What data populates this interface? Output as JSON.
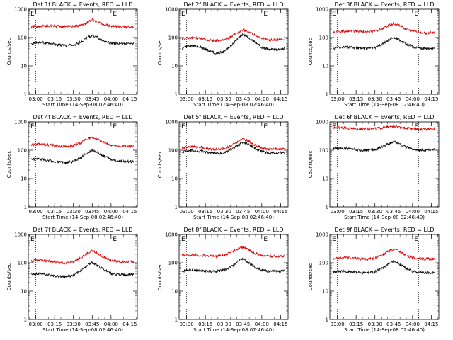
{
  "figure": {
    "colors": {
      "events": "#000000",
      "lld": "#dd0000",
      "axes": "#000000",
      "marker": "#000000"
    }
  },
  "chart_data": [
    {
      "type": "line",
      "title": "Det 1f BLACK = Events, RED = LLD",
      "xlabel": "Start Time (14-Sep-08 02:46:40)",
      "ylabel": "Counts/sec",
      "xlim": [
        2.9,
        4.35
      ],
      "ylim": [
        1,
        1000
      ],
      "yscale": "log",
      "xticks": [
        "03:00",
        "03:15",
        "03:30",
        "03:45",
        "04:00",
        "04:15"
      ],
      "yticks": [
        "1",
        "10",
        "100",
        "1000"
      ],
      "x_hours": [
        2.94,
        3.0,
        3.1,
        3.2,
        3.3,
        3.4,
        3.5,
        3.6,
        3.7,
        3.75,
        3.8,
        3.9,
        4.0,
        4.1,
        4.2,
        4.3
      ],
      "series": [
        {
          "values": [
            60,
            68,
            66,
            60,
            55,
            52,
            55,
            68,
            105,
            120,
            108,
            75,
            62,
            60,
            60,
            62
          ]
        },
        {
          "values": [
            240,
            250,
            255,
            255,
            250,
            245,
            250,
            270,
            360,
            430,
            380,
            290,
            255,
            240,
            235,
            240
          ]
        }
      ],
      "markers": [
        {
          "x": 3.0,
          "label": "E"
        },
        {
          "x": 4.08,
          "label": "E"
        }
      ]
    },
    {
      "type": "line",
      "title": "Det 2f BLACK = Events, RED = LLD",
      "xlabel": "Start Time (14-Sep-08 02:46:40)",
      "ylabel": "Counts/sec",
      "xlim": [
        2.9,
        4.35
      ],
      "ylim": [
        1,
        1000
      ],
      "yscale": "log",
      "xticks": [
        "03:00",
        "03:15",
        "03:30",
        "03:45",
        "04:00",
        "04:15"
      ],
      "yticks": [
        "1",
        "10",
        "100",
        "1000"
      ],
      "x_hours": [
        2.94,
        3.0,
        3.1,
        3.2,
        3.3,
        3.4,
        3.5,
        3.6,
        3.7,
        3.75,
        3.8,
        3.9,
        4.0,
        4.1,
        4.2,
        4.3
      ],
      "series": [
        {
          "values": [
            42,
            48,
            50,
            46,
            34,
            28,
            32,
            55,
            105,
            125,
            110,
            72,
            45,
            38,
            38,
            42
          ]
        },
        {
          "values": [
            90,
            95,
            98,
            92,
            80,
            78,
            82,
            110,
            160,
            185,
            170,
            130,
            95,
            82,
            85,
            88
          ]
        }
      ],
      "markers": [
        {
          "x": 3.0,
          "label": "E"
        },
        {
          "x": 4.08,
          "label": "E"
        }
      ]
    },
    {
      "type": "line",
      "title": "Det 3f BLACK = Events, RED = LLD",
      "xlabel": "Start Time (14-Sep-08 02:46:40)",
      "ylabel": "Counts/sec",
      "xlim": [
        2.9,
        4.35
      ],
      "ylim": [
        1,
        1000
      ],
      "yscale": "log",
      "xticks": [
        "03:00",
        "03:15",
        "03:30",
        "03:45",
        "04:00",
        "04:15"
      ],
      "yticks": [
        "1",
        "10",
        "100",
        "1000"
      ],
      "x_hours": [
        2.94,
        3.0,
        3.1,
        3.2,
        3.3,
        3.4,
        3.5,
        3.6,
        3.7,
        3.75,
        3.8,
        3.9,
        4.0,
        4.1,
        4.2,
        4.3
      ],
      "series": [
        {
          "values": [
            40,
            44,
            46,
            45,
            42,
            40,
            44,
            60,
            88,
            100,
            90,
            62,
            48,
            42,
            40,
            42
          ]
        },
        {
          "values": [
            150,
            160,
            170,
            172,
            165,
            160,
            170,
            210,
            280,
            310,
            280,
            210,
            170,
            150,
            145,
            150
          ]
        }
      ],
      "markers": [
        {
          "x": 3.0,
          "label": "E"
        },
        {
          "x": 4.08,
          "label": "E"
        }
      ]
    },
    {
      "type": "line",
      "title": "Det 4f BLACK = Events, RED = LLD",
      "xlabel": "Start Time (14-Sep-08 02:46:40)",
      "ylabel": "Counts/sec",
      "xlim": [
        2.9,
        4.35
      ],
      "ylim": [
        1,
        1000
      ],
      "yscale": "log",
      "xticks": [
        "03:00",
        "03:15",
        "03:30",
        "03:45",
        "04:00",
        "04:15"
      ],
      "yticks": [
        "1",
        "10",
        "100",
        "1000"
      ],
      "x_hours": [
        2.94,
        3.0,
        3.1,
        3.2,
        3.3,
        3.4,
        3.5,
        3.6,
        3.7,
        3.75,
        3.8,
        3.9,
        4.0,
        4.1,
        4.2,
        4.3
      ],
      "series": [
        {
          "values": [
            48,
            50,
            47,
            42,
            38,
            36,
            40,
            55,
            85,
            100,
            88,
            62,
            48,
            42,
            40,
            40
          ]
        },
        {
          "values": [
            150,
            165,
            160,
            150,
            140,
            135,
            145,
            185,
            260,
            290,
            260,
            190,
            150,
            135,
            135,
            138
          ]
        }
      ],
      "markers": [
        {
          "x": 3.0,
          "label": "E"
        },
        {
          "x": 4.08,
          "label": "E"
        }
      ]
    },
    {
      "type": "line",
      "title": "Det 5f BLACK = Events, RED = LLD",
      "xlabel": "Start Time (14-Sep-08 02:46:40)",
      "ylabel": "Counts/sec",
      "xlim": [
        2.9,
        4.35
      ],
      "ylim": [
        1,
        1000
      ],
      "yscale": "log",
      "xticks": [
        "03:00",
        "03:15",
        "03:30",
        "03:45",
        "04:00",
        "04:15"
      ],
      "yticks": [
        "1",
        "10",
        "100",
        "1000"
      ],
      "x_hours": [
        2.94,
        3.0,
        3.1,
        3.2,
        3.3,
        3.4,
        3.5,
        3.6,
        3.7,
        3.75,
        3.8,
        3.9,
        4.0,
        4.1,
        4.2,
        4.3
      ],
      "series": [
        {
          "values": [
            88,
            95,
            98,
            92,
            80,
            76,
            80,
            110,
            160,
            190,
            170,
            120,
            90,
            80,
            80,
            82
          ]
        },
        {
          "values": [
            120,
            128,
            132,
            125,
            108,
            105,
            112,
            150,
            215,
            250,
            225,
            160,
            118,
            108,
            110,
            112
          ]
        }
      ],
      "markers": [
        {
          "x": 3.0,
          "label": "E"
        },
        {
          "x": 4.08,
          "label": "E"
        }
      ]
    },
    {
      "type": "line",
      "title": "Det 6f BLACK = Events, RED = LLD",
      "xlabel": "Start Time (14-Sep-08 02:46:40)",
      "ylabel": "Counts/sec",
      "xlim": [
        2.9,
        4.35
      ],
      "ylim": [
        1,
        1000
      ],
      "yscale": "log",
      "xticks": [
        "03:00",
        "03:15",
        "03:30",
        "03:45",
        "04:00",
        "04:15"
      ],
      "yticks": [
        "1",
        "10",
        "100",
        "1000"
      ],
      "x_hours": [
        2.94,
        3.0,
        3.1,
        3.2,
        3.3,
        3.4,
        3.5,
        3.6,
        3.7,
        3.75,
        3.8,
        3.9,
        4.0,
        4.1,
        4.2,
        4.3
      ],
      "series": [
        {
          "values": [
            115,
            118,
            115,
            108,
            100,
            98,
            105,
            135,
            180,
            200,
            180,
            135,
            108,
            100,
            100,
            104
          ]
        },
        {
          "values": [
            640,
            630,
            610,
            590,
            560,
            555,
            575,
            620,
            670,
            690,
            670,
            610,
            580,
            560,
            560,
            570
          ]
        }
      ],
      "markers": [
        {
          "x": 3.0,
          "label": "E"
        },
        {
          "x": 4.08,
          "label": "E"
        }
      ]
    },
    {
      "type": "line",
      "title": "Det 7f BLACK = Events, RED = LLD",
      "xlabel": "Start Time (14-Sep-08 02:46:40)",
      "ylabel": "Counts/sec",
      "xlim": [
        2.9,
        4.35
      ],
      "ylim": [
        1,
        1000
      ],
      "yscale": "log",
      "xticks": [
        "03:00",
        "03:15",
        "03:30",
        "03:45",
        "04:00",
        "04:15"
      ],
      "yticks": [
        "1",
        "10",
        "100",
        "1000"
      ],
      "x_hours": [
        2.94,
        3.0,
        3.1,
        3.2,
        3.3,
        3.4,
        3.5,
        3.6,
        3.7,
        3.75,
        3.8,
        3.9,
        4.0,
        4.1,
        4.2,
        4.3
      ],
      "series": [
        {
          "values": [
            38,
            42,
            40,
            36,
            33,
            32,
            36,
            55,
            88,
            100,
            85,
            58,
            42,
            38,
            38,
            40
          ]
        },
        {
          "values": [
            115,
            125,
            120,
            112,
            100,
            98,
            108,
            150,
            230,
            265,
            230,
            160,
            120,
            108,
            108,
            112
          ]
        }
      ],
      "markers": [
        {
          "x": 3.0,
          "label": "E"
        },
        {
          "x": 4.08,
          "label": "E"
        }
      ]
    },
    {
      "type": "line",
      "title": "Det 8f BLACK = Events, RED = LLD",
      "xlabel": "Start Time (14-Sep-08 02:46:40)",
      "ylabel": "Counts/sec",
      "xlim": [
        2.9,
        4.35
      ],
      "ylim": [
        1,
        1000
      ],
      "yscale": "log",
      "xticks": [
        "03:00",
        "03:15",
        "03:30",
        "03:45",
        "04:00",
        "04:15"
      ],
      "yticks": [
        "1",
        "10",
        "100",
        "1000"
      ],
      "x_hours": [
        2.94,
        3.0,
        3.1,
        3.2,
        3.3,
        3.4,
        3.5,
        3.6,
        3.7,
        3.75,
        3.8,
        3.9,
        4.0,
        4.1,
        4.2,
        4.3
      ],
      "series": [
        {
          "values": [
            50,
            55,
            55,
            52,
            50,
            50,
            55,
            75,
            120,
            135,
            110,
            72,
            55,
            50,
            50,
            52
          ]
        },
        {
          "values": [
            185,
            190,
            188,
            182,
            175,
            172,
            185,
            240,
            330,
            350,
            310,
            220,
            180,
            170,
            168,
            172
          ]
        }
      ],
      "markers": [
        {
          "x": 3.0,
          "label": "E"
        },
        {
          "x": 4.08,
          "label": "E"
        }
      ]
    },
    {
      "type": "line",
      "title": "Det 9f BLACK = Events, RED = LLD",
      "xlabel": "Start Time (14-Sep-08 02:46:40)",
      "ylabel": "Counts/sec",
      "xlim": [
        2.9,
        4.35
      ],
      "ylim": [
        1,
        1000
      ],
      "yscale": "log",
      "xticks": [
        "03:00",
        "03:15",
        "03:30",
        "03:45",
        "04:00",
        "04:15"
      ],
      "yticks": [
        "1",
        "10",
        "100",
        "1000"
      ],
      "x_hours": [
        2.94,
        3.0,
        3.1,
        3.2,
        3.3,
        3.4,
        3.5,
        3.6,
        3.7,
        3.75,
        3.8,
        3.9,
        4.0,
        4.1,
        4.2,
        4.3
      ],
      "series": [
        {
          "values": [
            45,
            50,
            50,
            48,
            45,
            44,
            48,
            65,
            100,
            115,
            100,
            68,
            50,
            45,
            45,
            46
          ]
        },
        {
          "values": [
            140,
            150,
            150,
            145,
            138,
            135,
            145,
            190,
            270,
            300,
            270,
            190,
            150,
            140,
            138,
            140
          ]
        }
      ],
      "markers": [
        {
          "x": 3.0,
          "label": "E"
        },
        {
          "x": 4.08,
          "label": "E"
        }
      ]
    }
  ]
}
